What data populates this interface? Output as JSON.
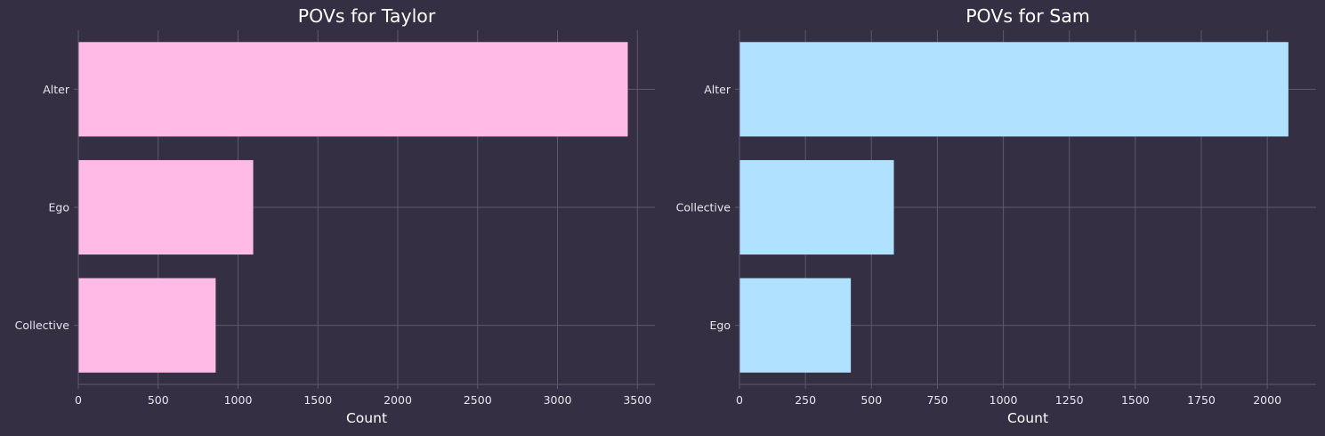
{
  "colors": {
    "background": "#342f43",
    "grid": "#5e586f",
    "text": "#ffffff",
    "tick_text": "#e8e6ee"
  },
  "chart_data": [
    {
      "type": "bar",
      "orientation": "horizontal",
      "title": "POVs for Taylor",
      "xlabel": "Count",
      "ylabel": "",
      "categories": [
        "Alter",
        "Ego",
        "Collective"
      ],
      "values": [
        3440,
        1095,
        860
      ],
      "xlim": [
        0,
        3610
      ],
      "xticks": [
        0,
        500,
        1000,
        1500,
        2000,
        2500,
        3000,
        3500
      ],
      "color": "#ffbbe6",
      "grid": true
    },
    {
      "type": "bar",
      "orientation": "horizontal",
      "title": "POVs for Sam",
      "xlabel": "Count",
      "ylabel": "",
      "categories": [
        "Alter",
        "Collective",
        "Ego"
      ],
      "values": [
        2080,
        585,
        422
      ],
      "xlim": [
        0,
        2185
      ],
      "xticks": [
        0,
        250,
        500,
        750,
        1000,
        1250,
        1500,
        1750,
        2000
      ],
      "color": "#b0e2ff",
      "grid": true
    }
  ]
}
